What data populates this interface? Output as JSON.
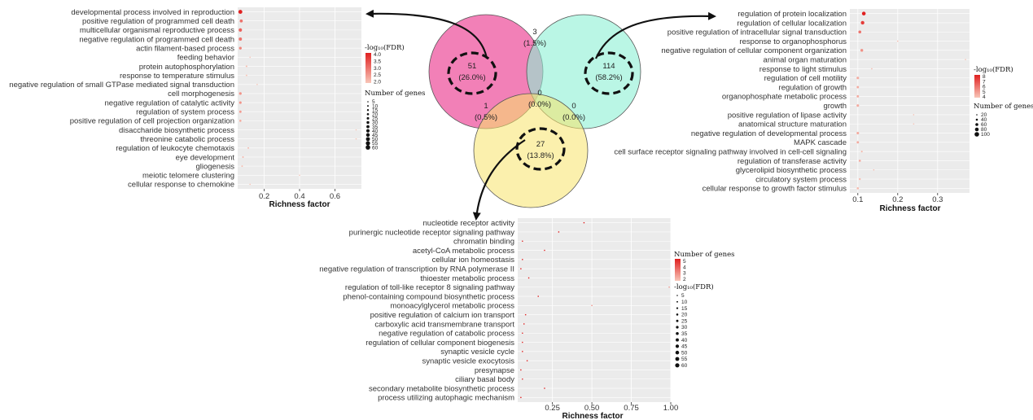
{
  "colors": {
    "venn_left": "#f06aaa",
    "venn_right": "#8cf0d4",
    "venn_bottom": "#f7e36a",
    "point_low": "#f8c6b8",
    "point_high": "#e02020",
    "panel_bg": "#ebebeb"
  },
  "venn": {
    "regions": [
      {
        "id": "left_only",
        "count": "51",
        "pct": "(26.0%)"
      },
      {
        "id": "right_only",
        "count": "114",
        "pct": "(58.2%)"
      },
      {
        "id": "bottom_only",
        "count": "27",
        "pct": "(13.8%)"
      },
      {
        "id": "left_right",
        "count": "3",
        "pct": "(1.5%)"
      },
      {
        "id": "left_bottom",
        "count": "1",
        "pct": "(0.5%)"
      },
      {
        "id": "right_bottom",
        "count": "0",
        "pct": "(0.0%)"
      },
      {
        "id": "all_three",
        "count": "0",
        "pct": "(0.0%)"
      }
    ]
  },
  "chart_data": [
    {
      "type": "scatter",
      "xlabel": "Richness factor",
      "xlim": [
        0.05,
        0.75
      ],
      "xticks": [
        "0.2",
        "0.4",
        "0.6"
      ],
      "xtick_values": [
        0.2,
        0.4,
        0.6
      ],
      "categories": [
        "developmental process involved in reproduction",
        "positive regulation of programmed cell death",
        "multicellular organismal reproductive process",
        "negative regulation of programmed cell death",
        "actin filament-based process",
        "feeding behavior",
        "protein autophosphorylation",
        "response to temperature stimulus",
        "negative regulation of small GTPase mediated signal transduction",
        "cell morphogenesis",
        "negative regulation of catalytic activity",
        "regulation of system process",
        "positive regulation of cell projection organization",
        "disaccharide biosynthetic process",
        "threonine catabolic process",
        "regulation of leukocyte chemotaxis",
        "eye development",
        "gliogenesis",
        "meiotic telomere clustering",
        "cellular response to chemokine"
      ],
      "richness": [
        0.065,
        0.07,
        0.065,
        0.065,
        0.065,
        0.12,
        0.1,
        0.1,
        0.16,
        0.065,
        0.065,
        0.065,
        0.065,
        0.72,
        0.72,
        0.11,
        0.08,
        0.075,
        0.4,
        0.12
      ],
      "neg_log_fdr": [
        4.0,
        3.0,
        3.2,
        3.0,
        2.8,
        2.0,
        2.1,
        2.0,
        2.0,
        2.6,
        2.6,
        2.5,
        2.3,
        2.0,
        2.0,
        2.2,
        2.2,
        2.1,
        2.0,
        2.0
      ],
      "gene_count": [
        50,
        35,
        40,
        38,
        30,
        5,
        12,
        10,
        5,
        28,
        26,
        24,
        20,
        3,
        3,
        8,
        10,
        9,
        3,
        6
      ],
      "legend": {
        "color_title": "-log₁₀(FDR)",
        "color_ticks": [
          "4.0",
          "3.5",
          "3.0",
          "2.5",
          "2.0"
        ],
        "color_range": [
          2.0,
          4.0
        ],
        "size_title": "Number of genes",
        "size_ticks": [
          "5",
          "10",
          "15",
          "20",
          "25",
          "30",
          "35",
          "40",
          "45",
          "50",
          "55",
          "60"
        ],
        "size_values": [
          5,
          10,
          15,
          20,
          25,
          30,
          35,
          40,
          45,
          50,
          55,
          60
        ]
      }
    },
    {
      "type": "scatter",
      "xlabel": "Richness factor",
      "xlim": [
        0.08,
        0.38
      ],
      "xticks": [
        "0.1",
        "0.2",
        "0.3"
      ],
      "xtick_values": [
        0.1,
        0.2,
        0.3
      ],
      "categories": [
        "regulation of protein localization",
        "regulation of cellular localization",
        "positive regulation of intracellular signal transduction",
        "response to organophosphorus",
        "negative regulation of cellular component organization",
        "animal organ maturation",
        "response to light stimulus",
        "regulation of cell motility",
        "regulation of growth",
        "organophosphate metabolic process",
        "growth",
        "positive regulation of lipase activity",
        "anatomical structure maturation",
        "negative regulation of developmental process",
        "MAPK cascade",
        "cell surface receptor signaling pathway involved in cell-cell signaling",
        "regulation of transferase activity",
        "glycerolipid biosynthetic process",
        "circulatory system process",
        "cellular response to growth factor stimulus"
      ],
      "richness": [
        0.115,
        0.112,
        0.105,
        0.2,
        0.11,
        0.37,
        0.135,
        0.1,
        0.1,
        0.1,
        0.1,
        0.24,
        0.24,
        0.1,
        0.1,
        0.11,
        0.105,
        0.14,
        0.105,
        0.1
      ],
      "neg_log_fdr": [
        8.0,
        7.0,
        5.0,
        2.5,
        4.0,
        2.0,
        2.5,
        3.0,
        3.0,
        3.0,
        3.0,
        2.0,
        2.0,
        3.0,
        3.0,
        2.5,
        3.0,
        2.5,
        2.5,
        2.5
      ],
      "gene_count": [
        80,
        75,
        60,
        10,
        55,
        5,
        20,
        50,
        45,
        45,
        50,
        8,
        8,
        50,
        45,
        30,
        40,
        20,
        35,
        40
      ],
      "legend": {
        "color_title": "-log₁₀(FDR)",
        "color_ticks": [
          "8",
          "7",
          "6",
          "5",
          "4"
        ],
        "color_range": [
          2.0,
          8.0
        ],
        "size_title": "Number of genes",
        "size_ticks": [
          "20",
          "40",
          "60",
          "80",
          "100"
        ],
        "size_values": [
          20,
          40,
          60,
          80,
          100
        ]
      }
    },
    {
      "type": "scatter",
      "xlabel": "Richness factor",
      "xlim": [
        0.03,
        1.0
      ],
      "xticks": [
        "0.25",
        "0.50",
        "0.75",
        "1.00"
      ],
      "xtick_values": [
        0.25,
        0.5,
        0.75,
        1.0
      ],
      "categories": [
        "nucleotide receptor activity",
        "purinergic nucleotide receptor signaling pathway",
        "chromatin binding",
        "acetyl-CoA metabolic process",
        "cellular ion homeostasis",
        "negative regulation of transcription by RNA polymerase II",
        "thioester metabolic process",
        "regulation of toll-like receptor 8 signaling pathway",
        "phenol-containing compound biosynthetic process",
        "monoacylglycerol metabolic process",
        "positive regulation of calcium ion transport",
        "carboxylic acid transmembrane transport",
        "negative regulation of catabolic process",
        "regulation of cellular component biogenesis",
        "synaptic vesicle cycle",
        "synaptic vesicle exocytosis",
        "presynapse",
        "ciliary basal body",
        "secondary metabolite biosynthetic process",
        "process utilizing autophagic mechanism"
      ],
      "richness": [
        0.45,
        0.29,
        0.06,
        0.2,
        0.06,
        0.05,
        0.1,
        0.99,
        0.16,
        0.5,
        0.08,
        0.07,
        0.06,
        0.06,
        0.06,
        0.09,
        0.05,
        0.06,
        0.2,
        0.05
      ],
      "neg_log_fdr": [
        5.0,
        3.5,
        2.5,
        2.0,
        2.5,
        2.5,
        2.0,
        2.0,
        2.0,
        2.0,
        2.0,
        2.0,
        2.2,
        2.2,
        2.0,
        2.0,
        2.0,
        2.0,
        2.0,
        2.2
      ],
      "gene_count": [
        20,
        10,
        55,
        5,
        60,
        60,
        10,
        3,
        5,
        3,
        25,
        30,
        40,
        40,
        35,
        20,
        45,
        35,
        8,
        50
      ],
      "legend": {
        "color_title": "Number of genes",
        "color_ticks": [
          "5",
          "4",
          "3",
          "2"
        ],
        "color_range": [
          2.0,
          5.0
        ],
        "size_title": "-log₁₀(FDR)",
        "size_ticks": [
          "5",
          "10",
          "15",
          "20",
          "25",
          "30",
          "35",
          "40",
          "45",
          "50",
          "55",
          "60"
        ],
        "size_values": [
          5,
          10,
          15,
          20,
          25,
          30,
          35,
          40,
          45,
          50,
          55,
          60
        ]
      }
    }
  ]
}
